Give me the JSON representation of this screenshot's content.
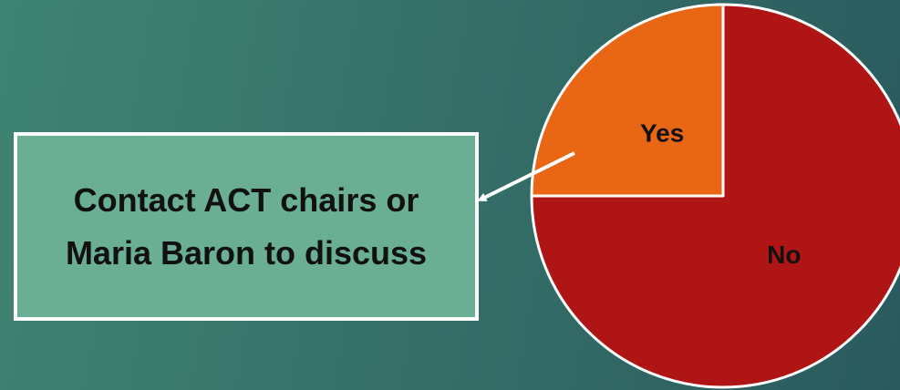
{
  "chart_data": {
    "type": "pie",
    "categories": [
      "Yes",
      "No"
    ],
    "values": [
      25,
      75
    ],
    "colors": [
      "#e96614",
      "#b01515"
    ],
    "annotation": "Contact ACT chairs or Maria Baron to discuss"
  }
}
